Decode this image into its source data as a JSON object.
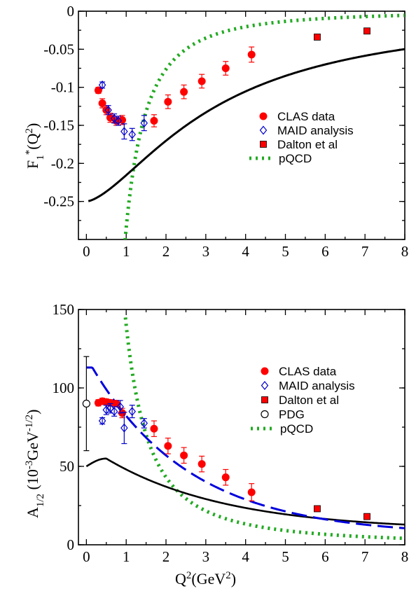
{
  "chart_data": [
    {
      "type": "scatter",
      "ylabel": "F1*(Q2)",
      "ylabel_parts": {
        "base": "F",
        "sub": "1",
        "sup": "*",
        "paren": "(Q",
        "sup2": "2",
        "close": ")"
      },
      "xlim": [
        -0.2,
        8
      ],
      "ylim": [
        -0.3,
        0
      ],
      "xticks": [
        0,
        1,
        2,
        3,
        4,
        5,
        6,
        7,
        8
      ],
      "yticks": [
        0,
        -0.05,
        -0.1,
        -0.15,
        -0.2,
        -0.25
      ],
      "ytick_labels": [
        "0",
        "-0.05",
        "-0.1",
        "-0.15",
        "-0.2",
        "-0.25"
      ],
      "xtick_labels": [
        "0",
        "1",
        "2",
        "3",
        "4",
        "5",
        "6",
        "7",
        "8"
      ],
      "legend_position": "right",
      "colors": {
        "clas": "#ff0000",
        "maid": "#0000cc",
        "dalton": "#ff0000",
        "pqcd": "#22aa22",
        "model": "#000000"
      },
      "series": [
        {
          "name": "CLAS data",
          "marker": "filled-circle",
          "points": [
            {
              "x": 0.3,
              "y": -0.104,
              "err": 0.004
            },
            {
              "x": 0.4,
              "y": -0.121,
              "err": 0.006
            },
            {
              "x": 0.5,
              "y": -0.13,
              "err": 0.006
            },
            {
              "x": 0.6,
              "y": -0.14,
              "err": 0.006
            },
            {
              "x": 0.75,
              "y": -0.144,
              "err": 0.006
            },
            {
              "x": 0.9,
              "y": -0.143,
              "err": 0.006
            },
            {
              "x": 1.7,
              "y": -0.144,
              "err": 0.008
            },
            {
              "x": 2.05,
              "y": -0.119,
              "err": 0.009
            },
            {
              "x": 2.45,
              "y": -0.106,
              "err": 0.009
            },
            {
              "x": 2.9,
              "y": -0.092,
              "err": 0.009
            },
            {
              "x": 3.5,
              "y": -0.075,
              "err": 0.009
            },
            {
              "x": 4.15,
              "y": -0.057,
              "err": 0.01
            }
          ]
        },
        {
          "name": "MAID analysis",
          "marker": "open-diamond",
          "points": [
            {
              "x": 0.4,
              "y": -0.097,
              "err": 0.004
            },
            {
              "x": 0.55,
              "y": -0.13,
              "err": 0.006
            },
            {
              "x": 0.7,
              "y": -0.141,
              "err": 0.006
            },
            {
              "x": 0.8,
              "y": -0.144,
              "err": 0.006
            },
            {
              "x": 0.95,
              "y": -0.158,
              "err": 0.01
            },
            {
              "x": 1.15,
              "y": -0.162,
              "err": 0.008
            },
            {
              "x": 1.45,
              "y": -0.147,
              "err": 0.01
            }
          ]
        },
        {
          "name": "Dalton et al",
          "marker": "filled-square",
          "points": [
            {
              "x": 5.8,
              "y": -0.034,
              "err": 0
            },
            {
              "x": 7.05,
              "y": -0.026,
              "err": 0
            }
          ]
        },
        {
          "name": "pQCD",
          "style": "dotted"
        },
        {
          "name": "",
          "style": "solid"
        }
      ]
    },
    {
      "type": "scatter",
      "xlabel": "Q2(GeV2)",
      "xlabel_parts": {
        "base": "Q",
        "sup": "2",
        "paren": "(GeV",
        "sup2": "2",
        "close": ")"
      },
      "ylabel": "A1/2 (10-3GeV-1/2)",
      "ylabel_parts": {
        "base": "A",
        "sub": "1/2",
        "paren": " (10",
        "sup": "-3",
        "mid": "GeV",
        "sup2": "-1/2",
        "close": ")"
      },
      "xlim": [
        -0.2,
        8
      ],
      "ylim": [
        0,
        150
      ],
      "xticks": [
        0,
        1,
        2,
        3,
        4,
        5,
        6,
        7,
        8
      ],
      "yticks": [
        0,
        50,
        100,
        150
      ],
      "ytick_labels": [
        "0",
        "50",
        "100",
        "150"
      ],
      "xtick_labels": [
        "0",
        "1",
        "2",
        "3",
        "4",
        "5",
        "6",
        "7",
        "8"
      ],
      "legend_position": "right",
      "colors": {
        "clas": "#ff0000",
        "maid": "#0000cc",
        "dalton": "#ff0000",
        "pdg": "#000000",
        "pqcd": "#22aa22",
        "model": "#000000",
        "dashed": "#0000dd"
      },
      "series": [
        {
          "name": "CLAS data",
          "marker": "filled-circle",
          "points": [
            {
              "x": 0.3,
              "y": 90.5,
              "err": 2
            },
            {
              "x": 0.4,
              "y": 91.5,
              "err": 2
            },
            {
              "x": 0.5,
              "y": 91,
              "err": 2
            },
            {
              "x": 0.6,
              "y": 90.5,
              "err": 2
            },
            {
              "x": 0.75,
              "y": 90,
              "err": 2
            },
            {
              "x": 0.9,
              "y": 84,
              "err": 3
            },
            {
              "x": 1.7,
              "y": 74,
              "err": 5
            },
            {
              "x": 2.05,
              "y": 63,
              "err": 5
            },
            {
              "x": 2.45,
              "y": 57,
              "err": 5
            },
            {
              "x": 2.9,
              "y": 51.5,
              "err": 5
            },
            {
              "x": 3.5,
              "y": 43,
              "err": 5
            },
            {
              "x": 4.15,
              "y": 33.5,
              "err": 5.5
            }
          ]
        },
        {
          "name": "MAID analysis",
          "marker": "open-diamond",
          "points": [
            {
              "x": 0.4,
              "y": 79,
              "err": 2
            },
            {
              "x": 0.5,
              "y": 86,
              "err": 3
            },
            {
              "x": 0.6,
              "y": 87,
              "err": 3
            },
            {
              "x": 0.7,
              "y": 85,
              "err": 3
            },
            {
              "x": 0.85,
              "y": 88,
              "err": 4
            },
            {
              "x": 0.95,
              "y": 74.5,
              "err": 10
            },
            {
              "x": 1.15,
              "y": 85,
              "err": 4
            },
            {
              "x": 1.45,
              "y": 77.5,
              "err": 3
            }
          ]
        },
        {
          "name": "Dalton et al",
          "marker": "filled-square",
          "points": [
            {
              "x": 5.8,
              "y": 23,
              "err": 0
            },
            {
              "x": 7.05,
              "y": 18,
              "err": 0
            }
          ]
        },
        {
          "name": "PDG",
          "marker": "open-circle",
          "points": [
            {
              "x": 0,
              "y": 90,
              "err": 30
            }
          ]
        },
        {
          "name": "pQCD",
          "style": "dotted"
        },
        {
          "name": "",
          "style": "solid"
        },
        {
          "name": "",
          "style": "dashed"
        }
      ]
    }
  ]
}
